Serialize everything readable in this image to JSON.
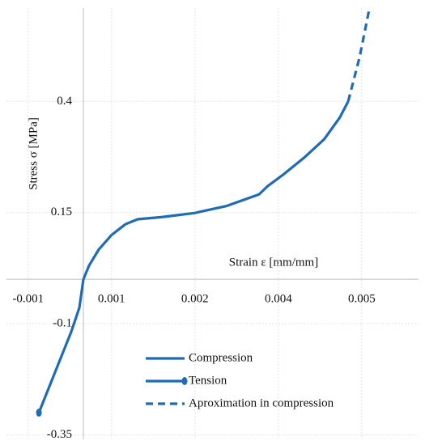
{
  "chart_data": {
    "type": "line",
    "x_label": "Strain ε [mm/mm]",
    "y_label": "Stress σ [MPa]",
    "xlim": [
      -0.001476,
      0.00643
    ],
    "ylim": [
      -0.36,
      0.61
    ],
    "xticks": [
      {
        "value": -0.00106,
        "label": "-0.001"
      },
      {
        "value": 0.00054,
        "label": "0.001"
      },
      {
        "value": 0.00214,
        "label": "0.002"
      },
      {
        "value": 0.00374,
        "label": "0.004"
      },
      {
        "value": 0.00534,
        "label": "0.005"
      }
    ],
    "yticks": [
      0.4,
      0.15,
      -0.1,
      -0.35
    ],
    "grid": true,
    "series": [
      {
        "name": "Compression",
        "color": "#1f6bb6",
        "style": "solid",
        "x": [
          0,
          0.000109,
          0.000295,
          0.000544,
          0.000808,
          0.00104,
          0.00151,
          0.00213,
          0.00275,
          0.00337,
          0.00353,
          0.00384,
          0.00423,
          0.00462,
          0.00492,
          0.00508
        ],
        "values": [
          0,
          0.031,
          0.067,
          0.1,
          0.124,
          0.135,
          0.14,
          0.149,
          0.165,
          0.191,
          0.209,
          0.236,
          0.273,
          0.315,
          0.364,
          0.4
        ]
      },
      {
        "name": "Tension",
        "color": "#1f6bb6",
        "style": "solid",
        "marker": "end",
        "x": [
          0,
          -7.8e-05,
          -0.000233,
          -0.000513,
          -0.000854
        ],
        "values": [
          0,
          -0.064,
          -0.118,
          -0.2,
          -0.3
        ]
      },
      {
        "name": "Aproximation in compression",
        "color": "#1f6bb6",
        "style": "dashed",
        "x": [
          0.00508,
          0.0053,
          0.00548
        ],
        "values": [
          0.4,
          0.5,
          0.605
        ]
      }
    ]
  }
}
